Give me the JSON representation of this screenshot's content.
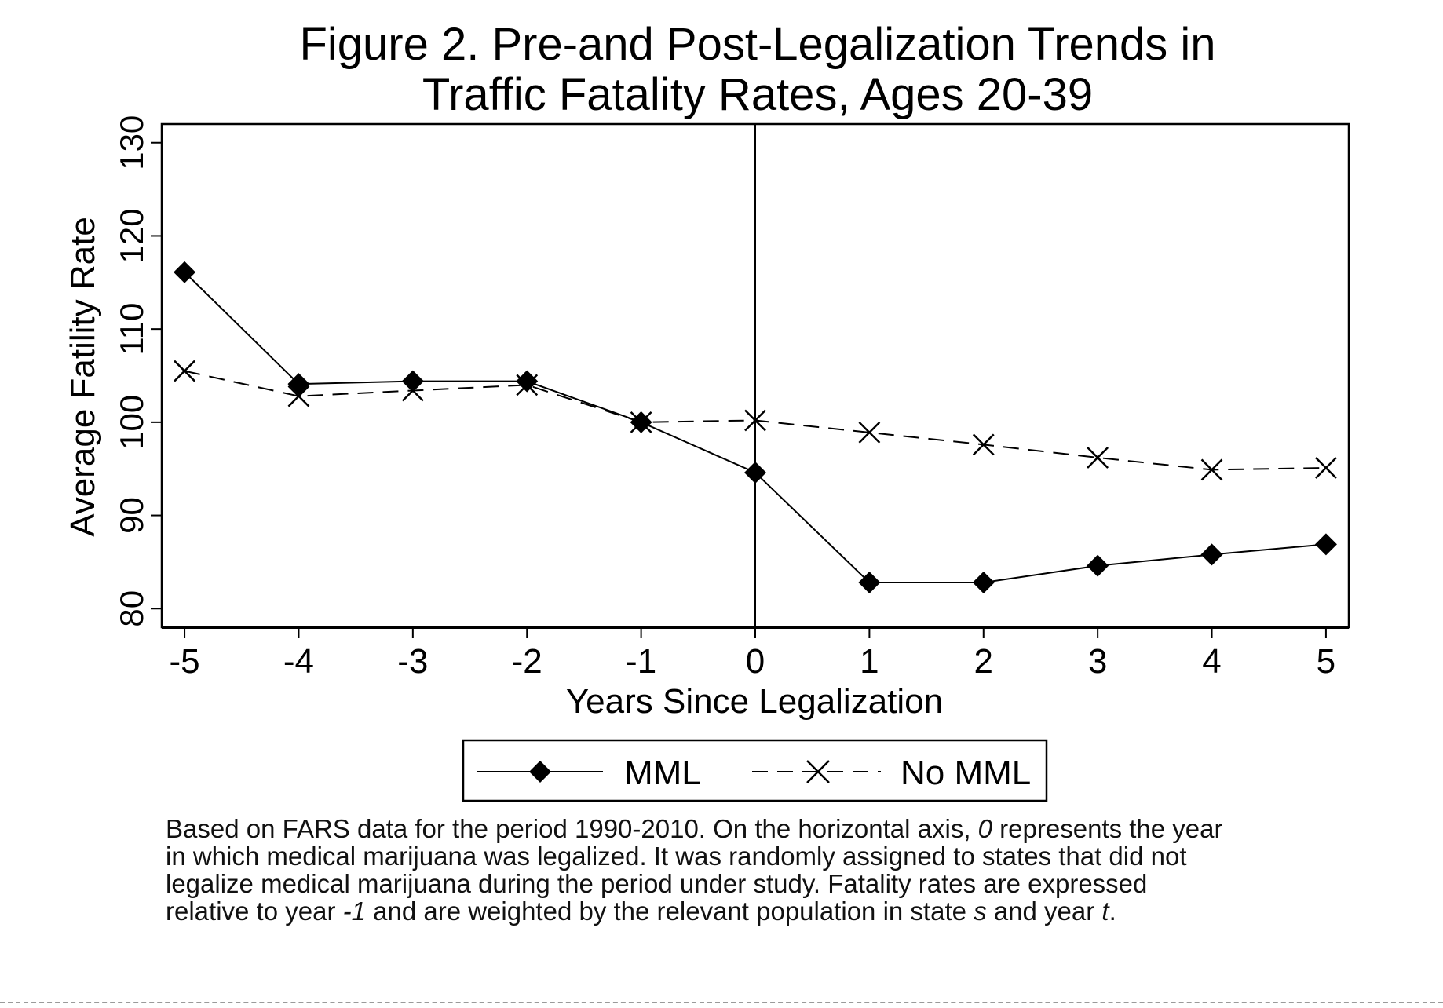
{
  "chart_data": {
    "type": "line",
    "title": "Figure 2. Pre-and Post-Legalization Trends in Traffic Fatality Rates, Ages 20-39",
    "title_lines": [
      "Figure 2. Pre-and Post-Legalization Trends in",
      "Traffic Fatality Rates, Ages 20-39"
    ],
    "xlabel": "Years Since Legalization",
    "ylabel": "Average Fatility Rate",
    "x": [
      -5,
      -4,
      -3,
      -2,
      -1,
      0,
      1,
      2,
      3,
      4,
      5
    ],
    "x_tick_labels": [
      "-5",
      "-4",
      "-3",
      "-2",
      "-1",
      "0",
      "1",
      "2",
      "3",
      "4",
      "5"
    ],
    "y_ticks": [
      80,
      90,
      100,
      110,
      120,
      130
    ],
    "ylim": [
      78,
      132
    ],
    "xlim": [
      -5.2,
      5.2
    ],
    "reference_line_x": 0,
    "grid": false,
    "legend_position": "bottom",
    "series": [
      {
        "name": "MML",
        "marker": "diamond",
        "line_style": "solid",
        "color": "#000000",
        "values": [
          116.1,
          104.1,
          104.4,
          104.4,
          100.0,
          94.6,
          82.8,
          82.8,
          84.6,
          85.8,
          86.9
        ]
      },
      {
        "name": "No MML",
        "marker": "x",
        "line_style": "dashed",
        "color": "#000000",
        "values": [
          105.5,
          102.8,
          103.4,
          104.0,
          100.0,
          100.2,
          98.9,
          97.6,
          96.2,
          94.9,
          95.1
        ]
      }
    ]
  },
  "caption": {
    "lines": [
      [
        {
          "text": "Based on FARS data for the period 1990-2010. On the horizontal axis, ",
          "italic": false
        },
        {
          "text": "0",
          "italic": true
        },
        {
          "text": " represents the year",
          "italic": false
        }
      ],
      [
        {
          "text": "in which medical marijuana was legalized.  It was randomly assigned to states that did not",
          "italic": false
        }
      ],
      [
        {
          "text": "legalize medical marijuana during the period under study. Fatality rates are expressed",
          "italic": false
        }
      ],
      [
        {
          "text": "relative to year ",
          "italic": false
        },
        {
          "text": "-1",
          "italic": true
        },
        {
          "text": " and are weighted by the relevant population in state ",
          "italic": false
        },
        {
          "text": "s",
          "italic": true
        },
        {
          "text": " and year ",
          "italic": false
        },
        {
          "text": "t",
          "italic": true
        },
        {
          "text": ".",
          "italic": false
        }
      ]
    ]
  }
}
